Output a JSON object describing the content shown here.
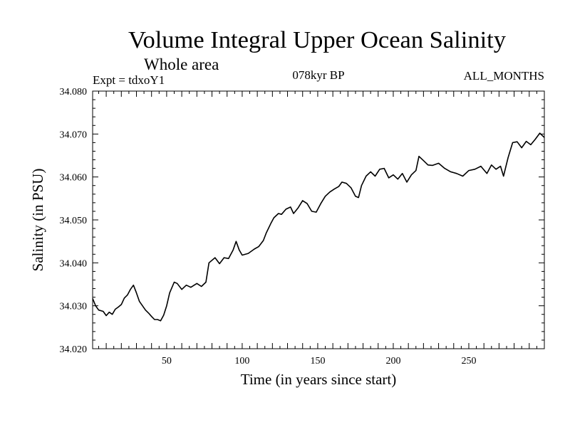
{
  "chart_data": {
    "type": "line",
    "title": "Volume Integral Upper Ocean Salinity",
    "subtitle": "Whole area",
    "experiment_label": "Expt = tdxoY1",
    "period_label": "078kyr BP",
    "months_label": "ALL_MONTHS",
    "xlabel": "Time (in years since start)",
    "ylabel": "Salinity (in PSU)",
    "xlim": [
      1,
      300
    ],
    "ylim": [
      34.02,
      34.08
    ],
    "x_ticks": [
      50,
      100,
      150,
      200,
      250
    ],
    "y_ticks": [
      34.02,
      34.03,
      34.04,
      34.05,
      34.06,
      34.07,
      34.08
    ],
    "y_tick_labels": [
      "34.020",
      "34.030",
      "34.040",
      "34.050",
      "34.060",
      "34.070",
      "34.080"
    ],
    "series": [
      {
        "name": "Salinity",
        "color": "#000000",
        "x": [
          1,
          3,
          5,
          8,
          10,
          12,
          14,
          16,
          18,
          20,
          22,
          24,
          26,
          28,
          30,
          32,
          34,
          36,
          38,
          40,
          42,
          44,
          46,
          48,
          50,
          52,
          55,
          57,
          60,
          63,
          66,
          70,
          73,
          76,
          78,
          82,
          85,
          88,
          91,
          94,
          96,
          98,
          100,
          104,
          108,
          111,
          114,
          116,
          119,
          121,
          124,
          126,
          129,
          132,
          134,
          137,
          140,
          143,
          146,
          149,
          152,
          155,
          158,
          161,
          164,
          166,
          169,
          172,
          175,
          177,
          179,
          182,
          185,
          188,
          191,
          194,
          197,
          200,
          203,
          206,
          209,
          212,
          215,
          217,
          220,
          223,
          226,
          230,
          234,
          238,
          242,
          246,
          250,
          254,
          258,
          262,
          265,
          268,
          271,
          273,
          276,
          279,
          282,
          285,
          288,
          291,
          294,
          297,
          300
        ],
        "values": [
          34.0317,
          34.03,
          34.029,
          34.0287,
          34.0277,
          34.0285,
          34.028,
          34.0292,
          34.0297,
          34.0303,
          34.0318,
          34.0325,
          34.0338,
          34.0348,
          34.033,
          34.031,
          34.03,
          34.029,
          34.0283,
          34.0275,
          34.0268,
          34.0268,
          34.0265,
          34.0278,
          34.03,
          34.033,
          34.0355,
          34.0352,
          34.0338,
          34.0348,
          34.0343,
          34.0352,
          34.0345,
          34.0355,
          34.04,
          34.0412,
          34.0398,
          34.0412,
          34.041,
          34.043,
          34.045,
          34.043,
          34.0418,
          34.0422,
          34.0432,
          34.0438,
          34.0452,
          34.047,
          34.0492,
          34.0505,
          34.0515,
          34.0513,
          34.0525,
          34.053,
          34.0515,
          34.0528,
          34.0545,
          34.0538,
          34.052,
          34.0518,
          34.0538,
          34.0555,
          34.0565,
          34.0572,
          34.0578,
          34.0588,
          34.0585,
          34.0575,
          34.0555,
          34.0552,
          34.058,
          34.0602,
          34.0612,
          34.0602,
          34.0618,
          34.062,
          34.0598,
          34.0605,
          34.0595,
          34.0608,
          34.0588,
          34.0605,
          34.0615,
          34.0648,
          34.0638,
          34.0628,
          34.0627,
          34.0632,
          34.062,
          34.0612,
          34.0608,
          34.0602,
          34.0615,
          34.0618,
          34.0625,
          34.0608,
          34.0628,
          34.0618,
          34.0625,
          34.0602,
          34.0645,
          34.068,
          34.0682,
          34.0668,
          34.0683,
          34.0675,
          34.0688,
          34.0702,
          34.0692
        ]
      }
    ]
  }
}
